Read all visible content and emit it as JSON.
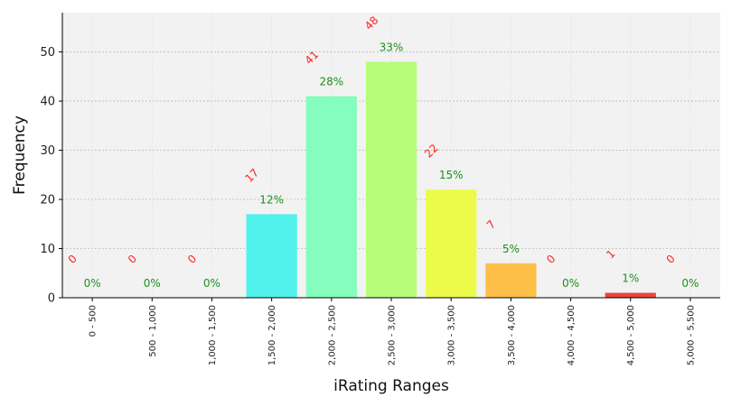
{
  "chart_data": {
    "type": "bar",
    "title": "",
    "xlabel": "iRating Ranges",
    "ylabel": "Frequency",
    "categories": [
      "0 - 500",
      "500 - 1,000",
      "1,000 - 1,500",
      "1,500 - 2,000",
      "2,000 - 2,500",
      "2,500 - 3,000",
      "3,000 - 3,500",
      "3,500 - 4,000",
      "4,000 - 4,500",
      "4,500 - 5,000",
      "5,000 - 5,500"
    ],
    "values": [
      0,
      0,
      0,
      17,
      41,
      48,
      22,
      7,
      0,
      1,
      0
    ],
    "count_labels": [
      "0",
      "0",
      "0",
      "17",
      "41",
      "48",
      "22",
      "7",
      "0",
      "1",
      "0"
    ],
    "percent_labels": [
      "0%",
      "0%",
      "0%",
      "12%",
      "28%",
      "33%",
      "15%",
      "5%",
      "0%",
      "1%",
      "0%"
    ],
    "colors": [
      "#2f3fd6",
      "#2f5fe8",
      "#2a8ff0",
      "#52f2ec",
      "#84fdbd",
      "#b6fd7a",
      "#ecfa4a",
      "#fdbf48",
      "#f26a2f",
      "#e8453c",
      "#8c0000"
    ],
    "ylim": [
      0,
      58
    ],
    "yticks": [
      0,
      10,
      20,
      30,
      40,
      50
    ],
    "grid": true,
    "plot_background": "#f2f2f2",
    "count_label_color": "#ff2020",
    "percent_label_color": "#1f8f1f"
  }
}
